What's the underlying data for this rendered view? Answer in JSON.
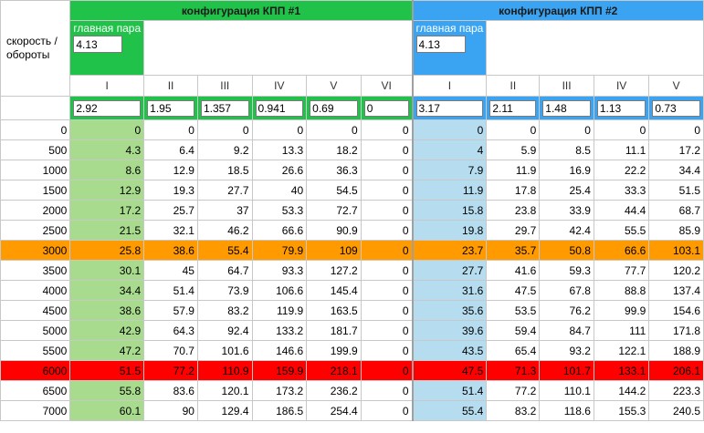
{
  "corner_label": "скорость /\nобороты",
  "config1": {
    "title": "конфигурация КПП #1",
    "main_pair_label": "главная пара",
    "main_pair_value": "4.13",
    "gears": [
      "I",
      "II",
      "III",
      "IV",
      "V",
      "VI"
    ],
    "ratios": [
      "2.92",
      "1.95",
      "1.357",
      "0.941",
      "0.69",
      "0"
    ]
  },
  "config2": {
    "title": "конфигурация КПП #2",
    "main_pair_label": "главная пара",
    "main_pair_value": "4.13",
    "gears": [
      "I",
      "II",
      "III",
      "IV",
      "V"
    ],
    "ratios": [
      "3.17",
      "2.11",
      "1.48",
      "1.13",
      "0.73"
    ]
  },
  "colors": {
    "config1": "#21c24a",
    "config2": "#3aa4f2",
    "highlight_3000": "#ff9a00",
    "highlight_6000": "#ff0000",
    "col1_fill": "#a9db8f",
    "col2_fill": "#b6dcef"
  },
  "rows": [
    {
      "rpm": "0",
      "c1": [
        "0",
        "0",
        "0",
        "0",
        "0",
        "0"
      ],
      "c2": [
        "0",
        "0",
        "0",
        "0",
        "0"
      ]
    },
    {
      "rpm": "500",
      "c1": [
        "4.3",
        "6.4",
        "9.2",
        "13.3",
        "18.2",
        "0"
      ],
      "c2": [
        "4",
        "5.9",
        "8.5",
        "11.1",
        "17.2"
      ]
    },
    {
      "rpm": "1000",
      "c1": [
        "8.6",
        "12.9",
        "18.5",
        "26.6",
        "36.3",
        "0"
      ],
      "c2": [
        "7.9",
        "11.9",
        "16.9",
        "22.2",
        "34.4"
      ]
    },
    {
      "rpm": "1500",
      "c1": [
        "12.9",
        "19.3",
        "27.7",
        "40",
        "54.5",
        "0"
      ],
      "c2": [
        "11.9",
        "17.8",
        "25.4",
        "33.3",
        "51.5"
      ]
    },
    {
      "rpm": "2000",
      "c1": [
        "17.2",
        "25.7",
        "37",
        "53.3",
        "72.7",
        "0"
      ],
      "c2": [
        "15.8",
        "23.8",
        "33.9",
        "44.4",
        "68.7"
      ]
    },
    {
      "rpm": "2500",
      "c1": [
        "21.5",
        "32.1",
        "46.2",
        "66.6",
        "90.9",
        "0"
      ],
      "c2": [
        "19.8",
        "29.7",
        "42.4",
        "55.5",
        "85.9"
      ]
    },
    {
      "rpm": "3000",
      "c1": [
        "25.8",
        "38.6",
        "55.4",
        "79.9",
        "109",
        "0"
      ],
      "c2": [
        "23.7",
        "35.7",
        "50.8",
        "66.6",
        "103.1"
      ],
      "style": "orange"
    },
    {
      "rpm": "3500",
      "c1": [
        "30.1",
        "45",
        "64.7",
        "93.3",
        "127.2",
        "0"
      ],
      "c2": [
        "27.7",
        "41.6",
        "59.3",
        "77.7",
        "120.2"
      ]
    },
    {
      "rpm": "4000",
      "c1": [
        "34.4",
        "51.4",
        "73.9",
        "106.6",
        "145.4",
        "0"
      ],
      "c2": [
        "31.6",
        "47.5",
        "67.8",
        "88.8",
        "137.4"
      ]
    },
    {
      "rpm": "4500",
      "c1": [
        "38.6",
        "57.9",
        "83.2",
        "119.9",
        "163.5",
        "0"
      ],
      "c2": [
        "35.6",
        "53.5",
        "76.2",
        "99.9",
        "154.6"
      ]
    },
    {
      "rpm": "5000",
      "c1": [
        "42.9",
        "64.3",
        "92.4",
        "133.2",
        "181.7",
        "0"
      ],
      "c2": [
        "39.6",
        "59.4",
        "84.7",
        "111",
        "171.8"
      ]
    },
    {
      "rpm": "5500",
      "c1": [
        "47.2",
        "70.7",
        "101.6",
        "146.6",
        "199.9",
        "0"
      ],
      "c2": [
        "43.5",
        "65.4",
        "93.2",
        "122.1",
        "188.9"
      ]
    },
    {
      "rpm": "6000",
      "c1": [
        "51.5",
        "77.2",
        "110.9",
        "159.9",
        "218.1",
        "0"
      ],
      "c2": [
        "47.5",
        "71.3",
        "101.7",
        "133.1",
        "206.1"
      ],
      "style": "red"
    },
    {
      "rpm": "6500",
      "c1": [
        "55.8",
        "83.6",
        "120.1",
        "173.2",
        "236.2",
        "0"
      ],
      "c2": [
        "51.4",
        "77.2",
        "110.1",
        "144.2",
        "223.3"
      ]
    },
    {
      "rpm": "7000",
      "c1": [
        "60.1",
        "90",
        "129.4",
        "186.5",
        "254.4",
        "0"
      ],
      "c2": [
        "55.4",
        "83.2",
        "118.6",
        "155.3",
        "240.5"
      ]
    }
  ]
}
